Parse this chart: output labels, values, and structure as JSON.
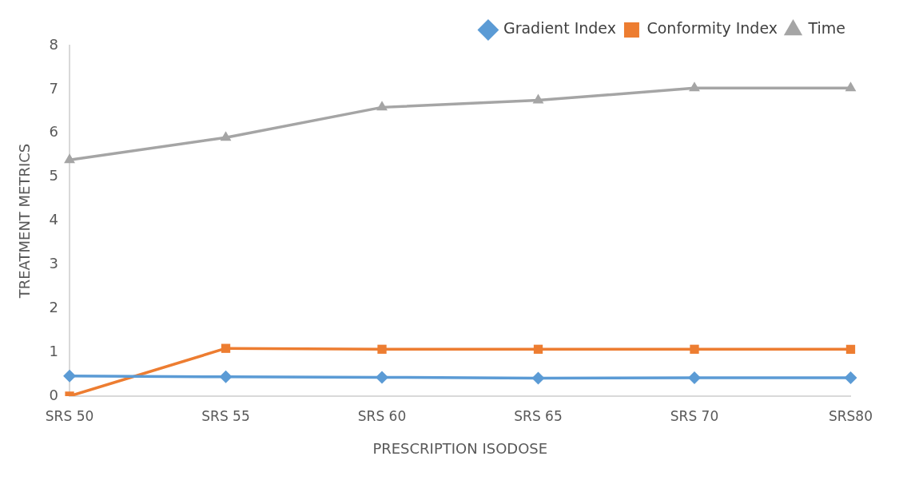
{
  "chart_data": {
    "type": "line",
    "xlabel": "PRESCRIPTION ISODOSE",
    "ylabel": "TREATMENT METRICS",
    "categories": [
      "SRS 50",
      "SRS 55",
      "SRS 60",
      "SRS 65",
      "SRS 70",
      "SRS80"
    ],
    "series": [
      {
        "name": "Gradient Index",
        "color": "#5b9bd5",
        "marker": "diamond",
        "values": [
          0.46,
          0.44,
          0.43,
          0.41,
          0.42,
          0.42
        ]
      },
      {
        "name": "Conformity Index",
        "color": "#ed7d31",
        "marker": "square",
        "values": [
          0,
          1.09,
          1.07,
          1.07,
          1.07,
          1.07
        ]
      },
      {
        "name": "Time",
        "color": "#a5a5a5",
        "marker": "triangle",
        "values": [
          5.39,
          5.9,
          6.59,
          6.75,
          7.03,
          7.03
        ]
      }
    ],
    "ylim": [
      0,
      8
    ],
    "yticks": [
      0,
      1,
      2,
      3,
      4,
      5,
      6,
      7,
      8
    ],
    "grid": false,
    "legend": "top right",
    "line_style": "solid"
  }
}
